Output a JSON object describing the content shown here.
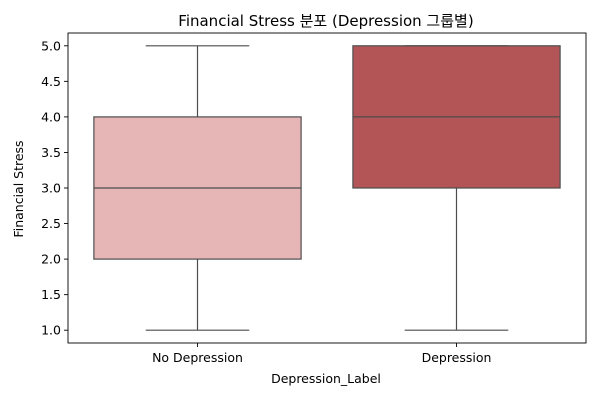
{
  "chart_data": {
    "type": "box",
    "title": "Financial Stress 분포 (Depression 그룹별)",
    "xlabel": "Depression_Label",
    "ylabel": "Financial Stress",
    "ylim": [
      0.82,
      5.18
    ],
    "yticks": [
      "1.0",
      "1.5",
      "2.0",
      "2.5",
      "3.0",
      "3.5",
      "4.0",
      "4.5",
      "5.0"
    ],
    "grid": false,
    "categories": [
      "No Depression",
      "Depression"
    ],
    "boxes": [
      {
        "label": "No Depression",
        "whisker_low": 1.0,
        "q1": 2.0,
        "median": 3.0,
        "q3": 4.0,
        "whisker_high": 5.0,
        "color": "#e6b5b6"
      },
      {
        "label": "Depression",
        "whisker_low": 1.0,
        "q1": 3.0,
        "median": 4.0,
        "q3": 5.0,
        "whisker_high": 5.0,
        "color": "#b35557"
      }
    ]
  }
}
